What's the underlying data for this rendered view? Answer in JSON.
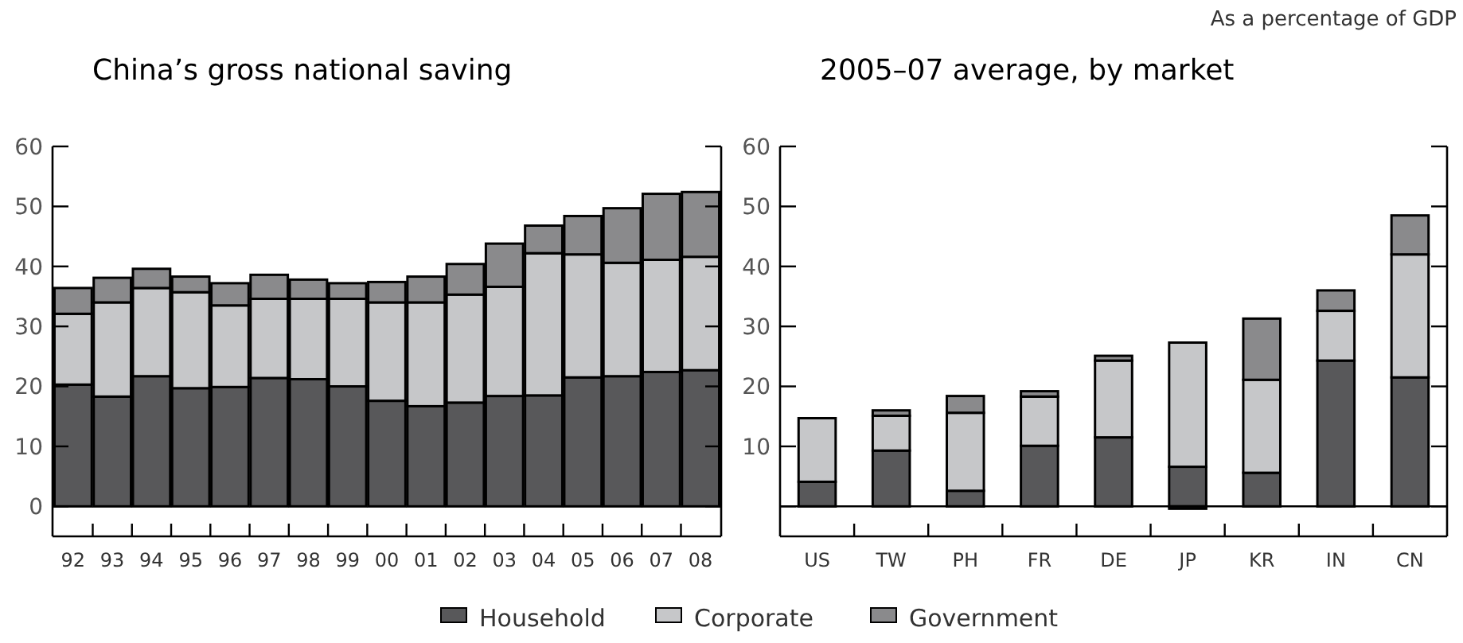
{
  "chart_data": [
    {
      "type": "bar",
      "stacked": true,
      "title": "China’s gross national saving",
      "categories": [
        "92",
        "93",
        "94",
        "95",
        "96",
        "97",
        "98",
        "99",
        "00",
        "01",
        "02",
        "03",
        "04",
        "05",
        "06",
        "07",
        "08"
      ],
      "series": [
        {
          "name": "Household",
          "color": "#58585a",
          "values": [
            20.3,
            18.3,
            21.7,
            19.7,
            19.9,
            21.4,
            21.2,
            20.0,
            17.6,
            16.7,
            17.3,
            18.4,
            18.5,
            21.5,
            21.7,
            22.4,
            22.7
          ]
        },
        {
          "name": "Corporate",
          "color": "#c6c7c9",
          "values": [
            11.8,
            15.7,
            14.7,
            16.0,
            13.6,
            13.2,
            13.4,
            14.6,
            16.4,
            17.3,
            18.0,
            18.2,
            23.7,
            20.5,
            18.9,
            18.7,
            18.9
          ]
        },
        {
          "name": "Government",
          "color": "#8a8a8c",
          "values": [
            4.3,
            4.1,
            3.2,
            2.6,
            3.7,
            4.0,
            3.2,
            2.6,
            3.4,
            4.3,
            5.1,
            7.2,
            4.6,
            6.4,
            9.1,
            11.0,
            10.8
          ]
        }
      ],
      "ylim": [
        -5,
        60
      ],
      "yticks": [
        0,
        10,
        20,
        30,
        40,
        50,
        60
      ],
      "legend": "bottom"
    },
    {
      "type": "bar",
      "stacked": true,
      "title": "2005–07 average, by market",
      "categories": [
        "US",
        "TW",
        "PH",
        "FR",
        "DE",
        "JP",
        "KR",
        "IN",
        "CN"
      ],
      "series": [
        {
          "color": "#58585a",
          "values": [
            4.1,
            9.3,
            2.6,
            10.1,
            11.5,
            6.6,
            5.6,
            24.3,
            21.5
          ]
        },
        {
          "color": "#c6c7c9",
          "values": [
            10.6,
            5.8,
            13.0,
            8.2,
            12.8,
            20.7,
            15.5,
            8.3,
            20.5
          ]
        },
        {
          "color": "#8a8a8c",
          "values": [
            0,
            0.9,
            2.8,
            0.9,
            0.8,
            -0.4,
            10.2,
            3.4,
            6.5
          ]
        }
      ],
      "ylim": [
        -5,
        60
      ],
      "yticks": [
        {
          "value": 0,
          "label": null
        },
        10,
        20,
        30,
        40,
        50,
        60
      ],
      "ref_lines": [
        {
          "axis": "y",
          "value": 0
        }
      ],
      "annotations": [
        "As a percentage of GDP"
      ]
    }
  ]
}
